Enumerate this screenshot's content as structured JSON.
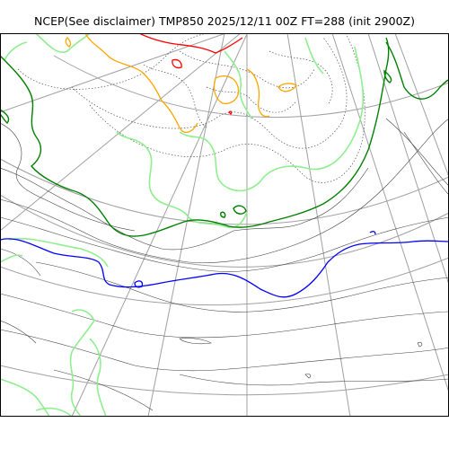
{
  "title": "NCEP(See disclaimer) TMP850 2025/12/11 00Z FT=288 (init 2900Z)",
  "colors": {
    "background": "#ffffff",
    "frame": "#000000",
    "graticule": "#a0a0a0",
    "isotherm_thin": "#404040",
    "isotherm_dotted": "#505050",
    "isotherm_zero_green": "#008000",
    "isotherm_light_green": "#90ee90",
    "isotherm_blue": "#0000ff",
    "isotherm_orange": "#ffa500",
    "isotherm_red": "#ff0000"
  }
}
